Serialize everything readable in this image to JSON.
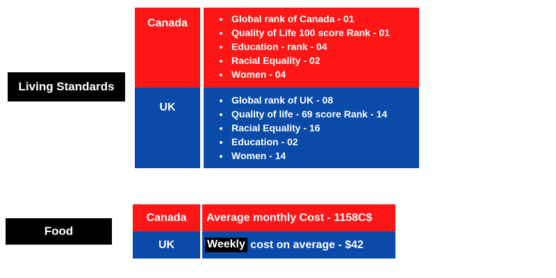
{
  "living": {
    "label": "Living Standards",
    "rows": [
      {
        "country": "Canada",
        "facts": [
          "Global rank of Canada - 01",
          "Quality of Life 100 score Rank - 01",
          "Education - rank - 04",
          "Racial Equality - 02",
          "Women - 04"
        ]
      },
      {
        "country": "UK",
        "facts": [
          "Global rank of UK - 08",
          "Quality of life - 69 score Rank - 14",
          "Racial Equality - 16",
          "Education - 02",
          "Women - 14"
        ]
      }
    ]
  },
  "food": {
    "label": "Food",
    "rows": [
      {
        "country": "Canada",
        "text": "Average monthly Cost - 1158C$"
      },
      {
        "country": "UK",
        "highlight": "Weekly",
        "text": " cost on average - $42"
      }
    ]
  },
  "colors": {
    "canada": "#fd1616",
    "uk": "#0a4aa8",
    "label_bg": "#000000"
  }
}
